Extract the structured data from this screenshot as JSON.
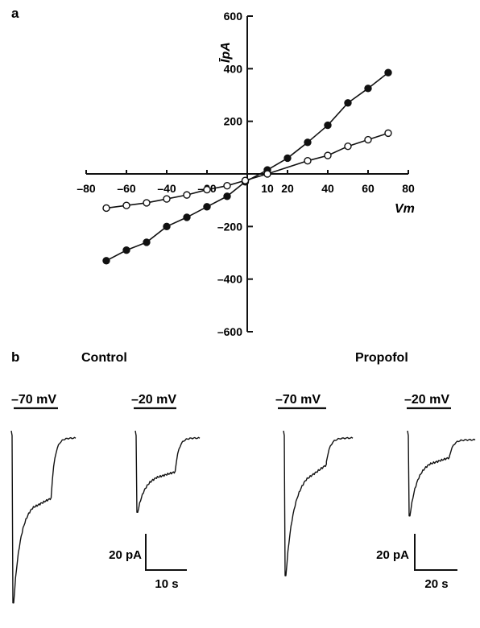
{
  "panel_a_label": "a",
  "panel_b_label": "b",
  "chart_data": [
    {
      "type": "scatter",
      "panel": "a",
      "ylabel": "ĪpA",
      "xlabel": "Vm",
      "xlim": [
        -80,
        80
      ],
      "ylim": [
        -600,
        600
      ],
      "x_ticks": [
        -80,
        -60,
        -40,
        -20,
        10,
        20,
        40,
        60,
        80
      ],
      "y_ticks": [
        600,
        400,
        200,
        -200,
        -400,
        -600
      ],
      "series": [
        {
          "marker": "filled-circle",
          "fit_line": true,
          "x": [
            -70,
            -60,
            -50,
            -40,
            -30,
            -20,
            -10,
            -1,
            10,
            20,
            30,
            40,
            50,
            60,
            70
          ],
          "y": [
            -330,
            -290,
            -260,
            -200,
            -165,
            -125,
            -85,
            -30,
            15,
            60,
            120,
            185,
            270,
            325,
            385
          ]
        },
        {
          "marker": "open-circle",
          "fit_line": true,
          "x": [
            -70,
            -60,
            -50,
            -40,
            -30,
            -20,
            -10,
            -1,
            10,
            30,
            40,
            50,
            60,
            70
          ],
          "y": [
            -130,
            -120,
            -110,
            -95,
            -80,
            -60,
            -45,
            -25,
            0,
            50,
            70,
            105,
            130,
            155
          ]
        }
      ]
    },
    {
      "type": "line",
      "panel": "b",
      "conditions": [
        {
          "title": "Control",
          "traces": [
            {
              "voltage": "–70 mV",
              "peak_pA": -95,
              "steady_pA": -48,
              "plateau_pA": -36,
              "recovered_pA": -4
            },
            {
              "voltage": "–20 mV",
              "peak_pA": -45,
              "steady_pA": -29,
              "plateau_pA": -22,
              "recovered_pA": -4
            }
          ],
          "scale_bar": {
            "current": "20 pA",
            "time": "10 s"
          }
        },
        {
          "title": "Propofol",
          "traces": [
            {
              "voltage": "–70 mV",
              "peak_pA": -80,
              "steady_pA": -35,
              "plateau_pA": -17,
              "recovered_pA": -4
            },
            {
              "voltage": "–20 mV",
              "peak_pA": -47,
              "steady_pA": -22,
              "plateau_pA": -14,
              "recovered_pA": -5
            }
          ],
          "scale_bar": {
            "current": "20 pA",
            "time": "20 s"
          }
        }
      ]
    }
  ]
}
